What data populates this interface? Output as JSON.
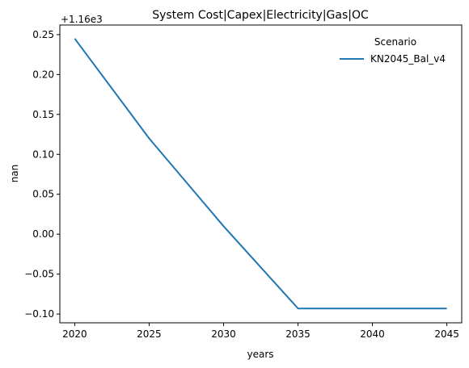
{
  "chart_data": {
    "type": "line",
    "title": "System Cost|Capex|Electricity|Gas|OC",
    "xlabel": "years",
    "ylabel": "nan",
    "offset_label": "+1.16e3",
    "x": [
      2020,
      2025,
      2030,
      2035,
      2040,
      2045
    ],
    "xticks": [
      "2020",
      "2025",
      "2030",
      "2035",
      "2040",
      "2045"
    ],
    "xlim": [
      2019,
      2046
    ],
    "yticks": [
      "0.25",
      "0.20",
      "0.15",
      "0.10",
      "0.05",
      "0.00",
      "−0.05",
      "−0.10"
    ],
    "ytick_values": [
      0.25,
      0.2,
      0.15,
      0.1,
      0.05,
      0.0,
      -0.05,
      -0.1
    ],
    "ylim": [
      -0.111,
      0.262
    ],
    "grid": false,
    "legend": {
      "title": "Scenario",
      "placement": "top-right"
    },
    "series": [
      {
        "name": "KN2045_Bal_v4",
        "color": "#1f77b4",
        "values": [
          0.245,
          0.12,
          0.01,
          -0.093,
          -0.093,
          -0.093
        ]
      }
    ]
  }
}
